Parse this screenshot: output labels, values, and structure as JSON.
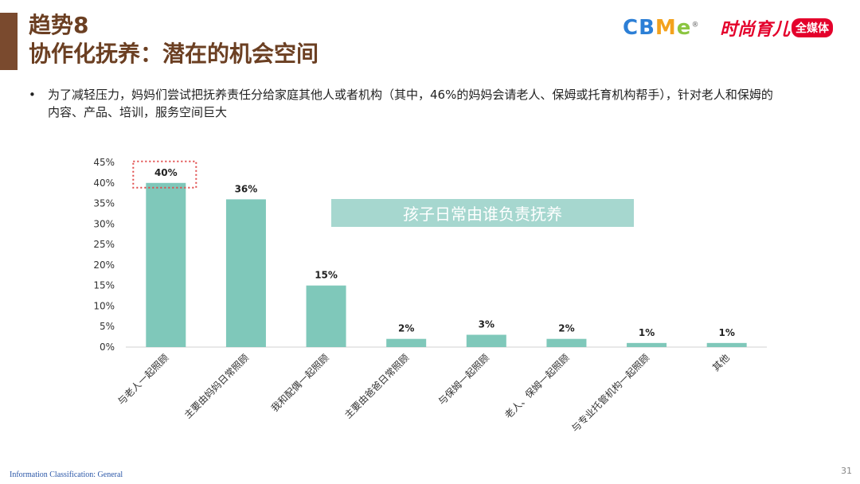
{
  "header": {
    "title_line1": "趋势8",
    "title_line2": "协作化抚养：潜在的机会空间"
  },
  "logos": {
    "cbme_letters": [
      "C",
      "B",
      "M",
      "e"
    ],
    "cbme_registered": "®",
    "fashion_main": "时尚育儿",
    "fashion_badge": "全媒体"
  },
  "bullet": {
    "symbol": "•",
    "text": "为了减轻压力，妈妈们尝试把抚养责任分给家庭其他人或者机构（其中，46%的妈妈会请老人、保姆或托育机构帮手），针对老人和保姆的内容、产品、培训，服务空间巨大"
  },
  "legend": {
    "label": "孩子日常由谁负责抚养"
  },
  "footer": {
    "classification": "Information Classification: General",
    "page_number": "31"
  },
  "colors": {
    "bar": "#7fc8ba",
    "title": "#6b3f22",
    "accent": "#7a4a2e",
    "highlight_dotted": "#e04a4a",
    "cbme": [
      "#2c7fd6",
      "#2c7fd6",
      "#f3a21d",
      "#8bc540"
    ]
  },
  "chart_data": {
    "type": "bar",
    "categories": [
      "与老人一起照顾",
      "主要由妈妈日常照顾",
      "我和配偶一起照顾",
      "主要由爸爸日常照顾",
      "与保姆一起照顾",
      "老人、保姆一起照顾",
      "与专业托管机构一起照顾",
      "其他"
    ],
    "values": [
      40,
      36,
      15,
      2,
      3,
      2,
      1,
      1
    ],
    "data_labels": [
      "40%",
      "36%",
      "15%",
      "2%",
      "3%",
      "2%",
      "1%",
      "1%"
    ],
    "y_ticks": [
      "0%",
      "5%",
      "10%",
      "15%",
      "20%",
      "25%",
      "30%",
      "35%",
      "40%",
      "45%"
    ],
    "ylim": [
      0,
      45
    ],
    "series_name": "孩子日常由谁负责抚养",
    "highlighted_index": 0,
    "grid": false
  }
}
